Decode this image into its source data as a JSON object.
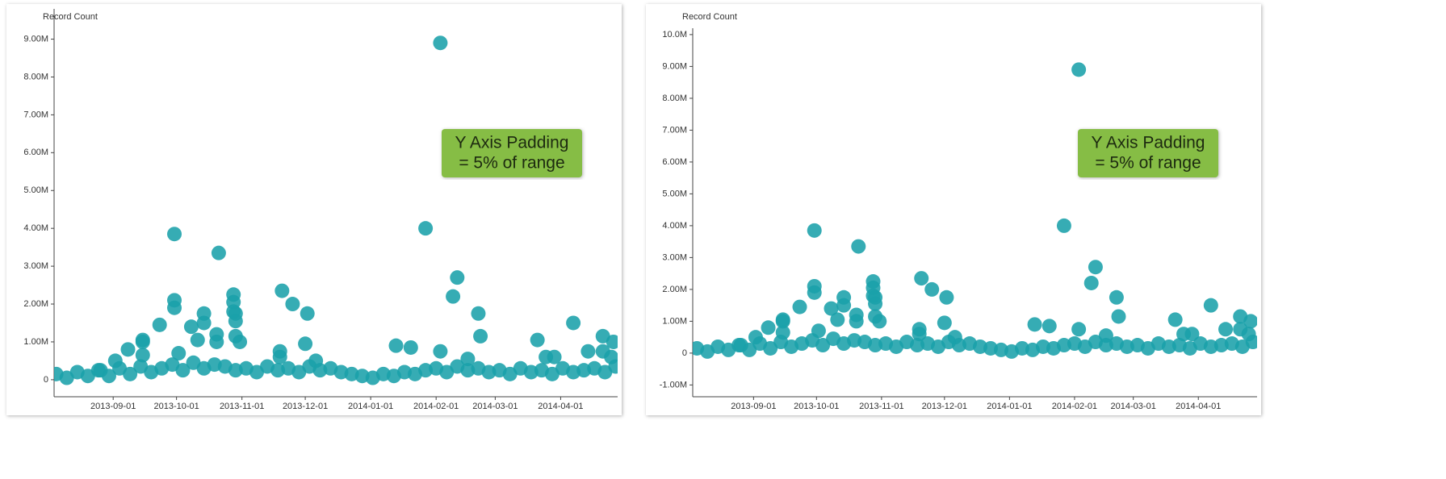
{
  "chart_data": [
    {
      "type": "scatter",
      "y_label": "Record Count",
      "annotation": [
        "Y Axis Padding",
        "= 5% of range"
      ],
      "color": "#1aa0aa",
      "annotation_color": "#86bd45",
      "xlim": [
        "2013-08-04",
        "2014-04-28"
      ],
      "xticks": [
        "2013-09-01",
        "2013-10-01",
        "2013-11-01",
        "2013-12-01",
        "2014-01-01",
        "2014-02-01",
        "2014-03-01",
        "2014-04-01"
      ],
      "ylim": [
        -450000,
        9800000
      ],
      "yticks": [
        0,
        {
          "value": 1000000,
          "label": "1.00M"
        },
        {
          "value": 2000000,
          "label": "2.00M"
        },
        {
          "value": 3000000,
          "label": "3.00M"
        },
        {
          "value": 4000000,
          "label": "4.00M"
        },
        {
          "value": 5000000,
          "label": "5.00M"
        },
        {
          "value": 6000000,
          "label": "6.00M"
        },
        {
          "value": 7000000,
          "label": "7.00M"
        },
        {
          "value": 8000000,
          "label": "8.00M"
        },
        {
          "value": 9000000,
          "label": "9.00M"
        }
      ],
      "x": [
        "2013-08-05",
        "2013-08-10",
        "2013-08-15",
        "2013-08-20",
        "2013-08-25",
        "2013-08-30",
        "2013-09-04",
        "2013-09-09",
        "2013-09-14",
        "2013-09-19",
        "2013-09-24",
        "2013-09-29",
        "2013-10-04",
        "2013-10-09",
        "2013-10-14",
        "2013-10-19",
        "2013-10-24",
        "2013-10-29",
        "2013-11-03",
        "2013-11-08",
        "2013-11-13",
        "2013-11-18",
        "2013-11-23",
        "2013-11-28",
        "2013-12-03",
        "2013-12-08",
        "2013-12-13",
        "2013-12-18",
        "2013-12-23",
        "2013-12-28",
        "2014-01-02",
        "2014-01-07",
        "2014-01-12",
        "2014-01-17",
        "2014-01-22",
        "2014-01-27",
        "2014-02-01",
        "2014-02-06",
        "2014-02-11",
        "2014-02-16",
        "2014-02-21",
        "2014-02-26",
        "2014-03-03",
        "2014-03-08",
        "2014-03-13",
        "2014-03-18",
        "2014-03-23",
        "2014-03-28",
        "2014-04-02",
        "2014-04-07",
        "2014-04-12",
        "2014-04-17",
        "2014-04-22",
        "2014-04-27",
        "2013-08-26",
        "2013-09-02",
        "2013-09-08",
        "2013-09-15",
        "2013-09-15",
        "2013-09-15",
        "2013-09-23",
        "2013-09-30",
        "2013-09-30",
        "2013-09-30",
        "2013-10-02",
        "2013-10-08",
        "2013-10-11",
        "2013-10-14",
        "2013-10-14",
        "2013-10-20",
        "2013-10-20",
        "2013-10-21",
        "2013-10-28",
        "2013-10-28",
        "2013-10-28",
        "2013-10-29",
        "2013-10-29",
        "2013-10-29",
        "2013-10-31",
        "2013-11-19",
        "2013-11-19",
        "2013-11-20",
        "2013-11-25",
        "2013-12-01",
        "2013-12-02",
        "2013-12-06",
        "2014-01-13",
        "2014-01-20",
        "2014-01-27",
        "2014-02-03",
        "2014-02-03",
        "2014-02-09",
        "2014-02-11",
        "2014-02-16",
        "2014-02-21",
        "2014-02-22",
        "2014-03-21",
        "2014-03-25",
        "2014-03-29",
        "2014-04-07",
        "2014-04-14",
        "2014-04-21",
        "2014-04-21",
        "2014-04-25",
        "2014-04-26"
      ],
      "values": [
        150000,
        50000,
        200000,
        100000,
        250000,
        100000,
        300000,
        150000,
        350000,
        200000,
        300000,
        400000,
        250000,
        450000,
        300000,
        400000,
        350000,
        250000,
        300000,
        200000,
        350000,
        250000,
        300000,
        200000,
        350000,
        250000,
        300000,
        200000,
        150000,
        100000,
        50000,
        150000,
        100000,
        200000,
        150000,
        250000,
        300000,
        200000,
        350000,
        250000,
        300000,
        200000,
        250000,
        150000,
        300000,
        200000,
        250000,
        150000,
        300000,
        200000,
        250000,
        300000,
        200000,
        350000,
        250000,
        500000,
        800000,
        650000,
        1000000,
        1050000,
        1450000,
        3850000,
        2100000,
        1900000,
        700000,
        1400000,
        1050000,
        1750000,
        1500000,
        1200000,
        1000000,
        3350000,
        2250000,
        2050000,
        1800000,
        1750000,
        1550000,
        1150000,
        1000000,
        750000,
        600000,
        2350000,
        2000000,
        950000,
        1750000,
        500000,
        900000,
        850000,
        4000000,
        8900000,
        750000,
        2200000,
        2700000,
        550000,
        1750000,
        1150000,
        1050000,
        600000,
        600000,
        1500000,
        750000,
        1150000,
        750000,
        600000,
        1000000
      ]
    },
    {
      "type": "scatter",
      "y_label": "Record Count",
      "annotation": [
        "Y Axis Padding",
        "= 5% of range"
      ],
      "color": "#1aa0aa",
      "annotation_color": "#86bd45",
      "xlim": [
        "2013-08-03",
        "2014-04-29"
      ],
      "xticks": [
        "2013-09-01",
        "2013-10-01",
        "2013-11-01",
        "2013-12-01",
        "2014-01-01",
        "2014-02-01",
        "2014-03-01",
        "2014-04-01"
      ],
      "ylim": [
        -1370000,
        10200000
      ],
      "yticks": [
        {
          "value": -1000000,
          "label": "-1.00M"
        },
        0,
        {
          "value": 1000000,
          "label": "1.00M"
        },
        {
          "value": 2000000,
          "label": "2.00M"
        },
        {
          "value": 3000000,
          "label": "3.00M"
        },
        {
          "value": 4000000,
          "label": "4.00M"
        },
        {
          "value": 5000000,
          "label": "5.00M"
        },
        {
          "value": 6000000,
          "label": "6.00M"
        },
        {
          "value": 7000000,
          "label": "7.00M"
        },
        {
          "value": 8000000,
          "label": "8.00M"
        },
        {
          "value": 9000000,
          "label": "9.00M"
        },
        {
          "value": 10000000,
          "label": "10.0M"
        }
      ],
      "x": [
        "2013-08-05",
        "2013-08-10",
        "2013-08-15",
        "2013-08-20",
        "2013-08-25",
        "2013-08-30",
        "2013-09-04",
        "2013-09-09",
        "2013-09-14",
        "2013-09-19",
        "2013-09-24",
        "2013-09-29",
        "2013-10-04",
        "2013-10-09",
        "2013-10-14",
        "2013-10-19",
        "2013-10-24",
        "2013-10-29",
        "2013-11-03",
        "2013-11-08",
        "2013-11-13",
        "2013-11-18",
        "2013-11-23",
        "2013-11-28",
        "2013-12-03",
        "2013-12-08",
        "2013-12-13",
        "2013-12-18",
        "2013-12-23",
        "2013-12-28",
        "2014-01-02",
        "2014-01-07",
        "2014-01-12",
        "2014-01-17",
        "2014-01-22",
        "2014-01-27",
        "2014-02-01",
        "2014-02-06",
        "2014-02-11",
        "2014-02-16",
        "2014-02-21",
        "2014-02-26",
        "2014-03-03",
        "2014-03-08",
        "2014-03-13",
        "2014-03-18",
        "2014-03-23",
        "2014-03-28",
        "2014-04-02",
        "2014-04-07",
        "2014-04-12",
        "2014-04-17",
        "2014-04-22",
        "2014-04-27",
        "2013-08-26",
        "2013-09-02",
        "2013-09-08",
        "2013-09-15",
        "2013-09-15",
        "2013-09-15",
        "2013-09-23",
        "2013-09-30",
        "2013-09-30",
        "2013-09-30",
        "2013-10-02",
        "2013-10-08",
        "2013-10-11",
        "2013-10-14",
        "2013-10-14",
        "2013-10-20",
        "2013-10-20",
        "2013-10-21",
        "2013-10-28",
        "2013-10-28",
        "2013-10-28",
        "2013-10-29",
        "2013-10-29",
        "2013-10-29",
        "2013-10-31",
        "2013-11-19",
        "2013-11-19",
        "2013-11-20",
        "2013-11-25",
        "2013-12-01",
        "2013-12-02",
        "2013-12-06",
        "2014-01-13",
        "2014-01-20",
        "2014-01-27",
        "2014-02-03",
        "2014-02-03",
        "2014-02-09",
        "2014-02-11",
        "2014-02-16",
        "2014-02-21",
        "2014-02-22",
        "2014-03-21",
        "2014-03-25",
        "2014-03-29",
        "2014-04-07",
        "2014-04-14",
        "2014-04-21",
        "2014-04-21",
        "2014-04-25",
        "2014-04-26"
      ],
      "values": [
        150000,
        50000,
        200000,
        100000,
        250000,
        100000,
        300000,
        150000,
        350000,
        200000,
        300000,
        400000,
        250000,
        450000,
        300000,
        400000,
        350000,
        250000,
        300000,
        200000,
        350000,
        250000,
        300000,
        200000,
        350000,
        250000,
        300000,
        200000,
        150000,
        100000,
        50000,
        150000,
        100000,
        200000,
        150000,
        250000,
        300000,
        200000,
        350000,
        250000,
        300000,
        200000,
        250000,
        150000,
        300000,
        200000,
        250000,
        150000,
        300000,
        200000,
        250000,
        300000,
        200000,
        350000,
        250000,
        500000,
        800000,
        650000,
        1000000,
        1050000,
        1450000,
        3850000,
        2100000,
        1900000,
        700000,
        1400000,
        1050000,
        1750000,
        1500000,
        1200000,
        1000000,
        3350000,
        2250000,
        2050000,
        1800000,
        1750000,
        1550000,
        1150000,
        1000000,
        750000,
        600000,
        2350000,
        2000000,
        950000,
        1750000,
        500000,
        900000,
        850000,
        4000000,
        8900000,
        750000,
        2200000,
        2700000,
        550000,
        1750000,
        1150000,
        1050000,
        600000,
        600000,
        1500000,
        750000,
        1150000,
        750000,
        600000,
        1000000
      ]
    }
  ]
}
